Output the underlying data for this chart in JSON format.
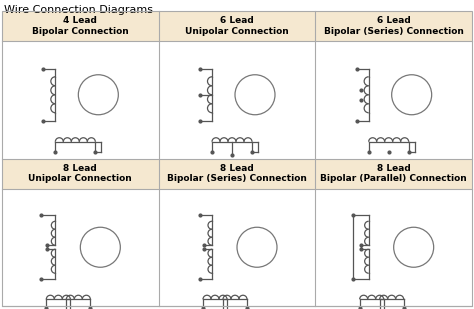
{
  "title": "Wire Connection Diagrams",
  "title_fontsize": 8,
  "title_weight": "normal",
  "header_bg": "#f5e8d0",
  "cell_bg": "#ffffff",
  "border_color": "#aaaaaa",
  "line_color": "#555555",
  "header_fontsize": 6.5,
  "cells": [
    [
      "4 Lead\nBipolar Connection",
      "6 Lead\nUnipolar Connection",
      "6 Lead\nBipolar (Series) Connection"
    ],
    [
      "8 Lead\nUnipolar Connection",
      "8 Lead\nBipolar (Series) Connection",
      "8 Lead\nBipolar (Parallel) Connection"
    ]
  ],
  "fig_width": 4.74,
  "fig_height": 3.09,
  "dpi": 100
}
